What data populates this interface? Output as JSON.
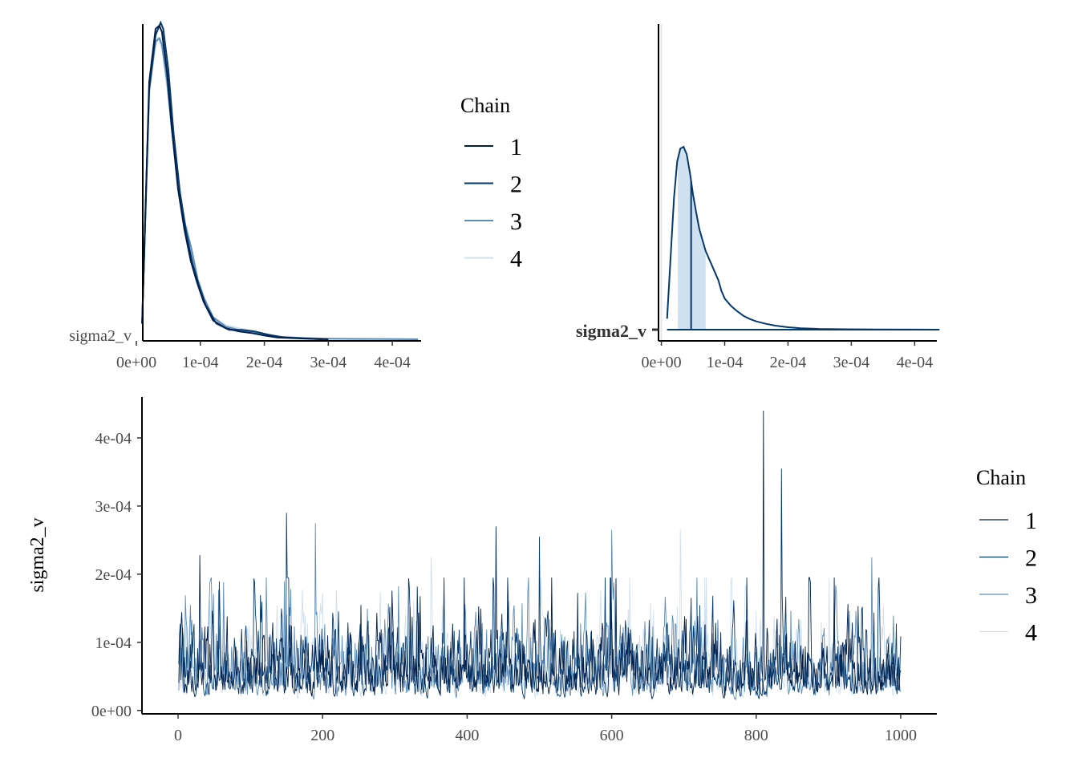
{
  "colors": {
    "chain1": "#011f4b",
    "chain2": "#03396c",
    "chain3": "#5b8db8",
    "chain4": "#cfe0ee",
    "area_line": "#03396c",
    "area_fill": "#cfe0ee"
  },
  "chart_data": [
    {
      "type": "line",
      "name": "density",
      "y_tick_label": "sigma2_v",
      "xlim": [
        1e-05,
        0.000445
      ],
      "x_ticks": [
        0,
        0.0001,
        0.0002,
        0.0003,
        0.0004
      ],
      "x_tick_labels": [
        "0e+00",
        "1e-04",
        "2e-04",
        "3e-04",
        "4e-04"
      ],
      "legend": {
        "title": "Chain",
        "labels": [
          "1",
          "2",
          "3",
          "4"
        ]
      },
      "series": [
        {
          "name": "1",
          "x": [
            9e-06,
            2e-05,
            3e-05,
            3.6e-05,
            4e-05,
            4.8e-05,
            5.5e-05,
            6.5e-05,
            7.5e-05,
            8.5e-05,
            9.5e-05,
            0.000105,
            0.00012,
            0.00014,
            0.00016,
            0.00018,
            0.0002,
            0.00022,
            0.00025,
            0.00028,
            0.0003
          ],
          "y": [
            0.05,
            0.82,
            0.99,
            1.0,
            0.98,
            0.85,
            0.68,
            0.48,
            0.35,
            0.25,
            0.18,
            0.12,
            0.06,
            0.035,
            0.025,
            0.02,
            0.012,
            0.006,
            0.003,
            0.001,
            0
          ]
        },
        {
          "name": "2",
          "x": [
            9e-06,
            2e-05,
            3e-05,
            3.8e-05,
            4.2e-05,
            5e-05,
            5.8e-05,
            6.8e-05,
            7.8e-05,
            8.8e-05,
            9.8e-05,
            0.000108,
            0.000125,
            0.000145,
            0.000165,
            0.000185,
            0.000205,
            0.00023,
            0.00026,
            0.00029
          ],
          "y": [
            0.05,
            0.8,
            0.97,
            1.01,
            0.99,
            0.86,
            0.66,
            0.47,
            0.34,
            0.24,
            0.17,
            0.11,
            0.05,
            0.03,
            0.03,
            0.025,
            0.015,
            0.006,
            0.003,
            0
          ]
        },
        {
          "name": "3",
          "x": [
            9e-06,
            2e-05,
            3e-05,
            3.6e-05,
            4e-05,
            4.8e-05,
            5.6e-05,
            6.6e-05,
            7.6e-05,
            8.6e-05,
            9.6e-05,
            0.000106,
            0.00012,
            0.00014,
            0.00016,
            0.00018,
            0.0002,
            0.000225,
            0.00026,
            0.0003,
            0.00044
          ],
          "y": [
            0.05,
            0.79,
            0.95,
            0.96,
            0.94,
            0.82,
            0.66,
            0.49,
            0.37,
            0.29,
            0.19,
            0.13,
            0.07,
            0.04,
            0.03,
            0.025,
            0.015,
            0.008,
            0.004,
            0.002,
            0
          ]
        },
        {
          "name": "4",
          "x": [
            9e-06,
            2e-05,
            2.8e-05,
            3.4e-05,
            4e-05,
            4.8e-05,
            5.6e-05,
            6.6e-05,
            7.6e-05,
            8.6e-05,
            9.6e-05,
            0.000106,
            0.00012,
            0.00014,
            0.00016,
            0.00018,
            0.0002,
            0.000225,
            0.00026,
            0.0003,
            0.00036
          ],
          "y": [
            0.05,
            0.78,
            0.93,
            0.96,
            0.93,
            0.81,
            0.65,
            0.49,
            0.36,
            0.26,
            0.18,
            0.12,
            0.07,
            0.045,
            0.035,
            0.028,
            0.018,
            0.009,
            0.004,
            0.002,
            0
          ]
        }
      ]
    },
    {
      "type": "area",
      "name": "posterior-area",
      "y_tick_label": "sigma2_v",
      "xlim": [
        -4.5e-06,
        0.000435
      ],
      "x_ticks": [
        0,
        0.0001,
        0.0002,
        0.0003,
        0.0004
      ],
      "x_tick_labels": [
        "0e+00",
        "1e-04",
        "2e-04",
        "3e-04",
        "4e-04"
      ],
      "reference_line_x": 0,
      "median": 4.7e-05,
      "interval": [
        2.6e-05,
        7e-05
      ],
      "range": [
        9e-06,
        0.000439
      ],
      "density": {
        "x": [
          9e-06,
          1.5e-05,
          2e-05,
          2.5e-05,
          3e-05,
          3.5e-05,
          4e-05,
          4.5e-05,
          5e-05,
          5.5e-05,
          6e-05,
          7e-05,
          8e-05,
          9e-05,
          9.5e-05,
          0.0001,
          0.00011,
          0.00012,
          0.00013,
          0.00014,
          0.00015,
          0.000165,
          0.00018,
          0.0002,
          0.00022,
          0.00025,
          0.00029,
          0.00034,
          0.0004,
          0.000439
        ],
        "y": [
          0.06,
          0.42,
          0.72,
          0.92,
          0.99,
          1.0,
          0.96,
          0.86,
          0.74,
          0.64,
          0.55,
          0.43,
          0.35,
          0.27,
          0.21,
          0.17,
          0.13,
          0.1,
          0.075,
          0.058,
          0.045,
          0.032,
          0.022,
          0.013,
          0.008,
          0.004,
          0.002,
          0.001,
          0.0004,
          0
        ]
      }
    },
    {
      "type": "line",
      "name": "trace",
      "ylabel": "sigma2_v",
      "xlim": [
        -50,
        1050
      ],
      "ylim": [
        -5e-06,
        0.00046
      ],
      "x_ticks": [
        0,
        200,
        400,
        600,
        800,
        1000
      ],
      "x_tick_labels": [
        "0",
        "200",
        "400",
        "600",
        "800",
        "1000"
      ],
      "y_ticks": [
        0,
        0.0001,
        0.0002,
        0.0003,
        0.0004
      ],
      "y_tick_labels": [
        "0e+00",
        "1e-04",
        "2e-04",
        "3e-04",
        "4e-04"
      ],
      "legend": {
        "title": "Chain",
        "labels": [
          "1",
          "2",
          "3",
          "4"
        ]
      },
      "iterations": 1000,
      "baseline": 5.5e-05,
      "spikes": [
        {
          "iter": 30,
          "value": 0.000228
        },
        {
          "iter": 150,
          "value": 0.00029
        },
        {
          "iter": 190,
          "value": 0.000275
        },
        {
          "iter": 350,
          "value": 0.000225
        },
        {
          "iter": 440,
          "value": 0.00027
        },
        {
          "iter": 500,
          "value": 0.000255
        },
        {
          "iter": 600,
          "value": 0.000265
        },
        {
          "iter": 695,
          "value": 0.000265
        },
        {
          "iter": 810,
          "value": 0.00044
        },
        {
          "iter": 835,
          "value": 0.000355
        },
        {
          "iter": 960,
          "value": 0.000225
        }
      ]
    }
  ]
}
